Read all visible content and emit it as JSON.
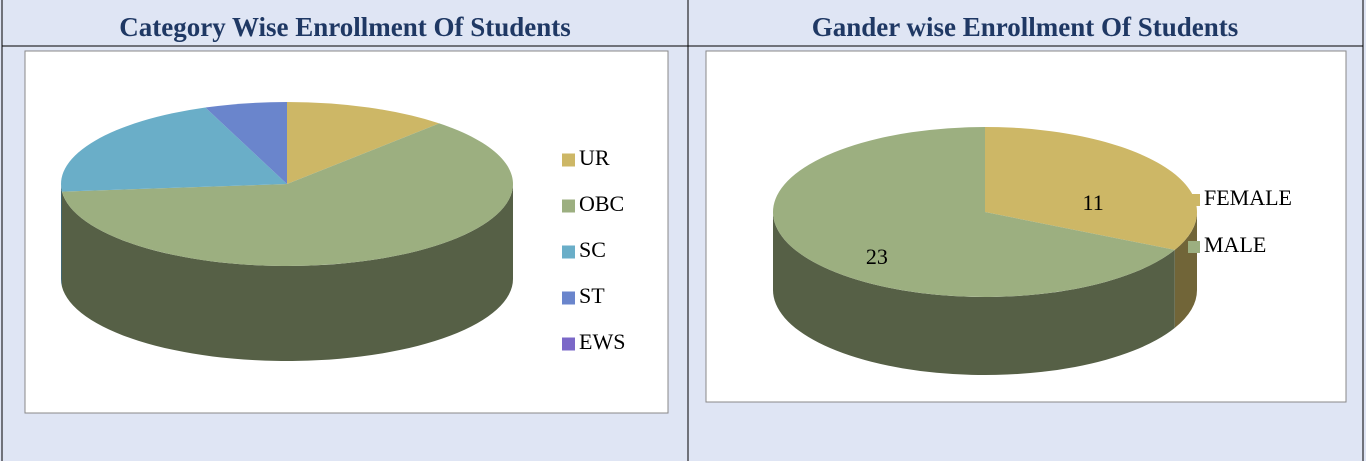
{
  "chart_data": [
    {
      "type": "pie",
      "title": "Category Wise Enrollment Of Students",
      "categories": [
        "UR",
        "OBC",
        "SC",
        "ST",
        "EWS"
      ],
      "values": [
        4,
        21,
        7,
        2,
        0
      ],
      "colors": [
        "#cdb766",
        "#9caf80",
        "#6aaec8",
        "#6a85cc",
        "#7b68c8"
      ],
      "legend": "right"
    },
    {
      "type": "pie",
      "title": "Gander wise Enrollment Of Students",
      "categories": [
        "FEMALE",
        "MALE"
      ],
      "values": [
        11,
        23
      ],
      "colors": [
        "#cdb766",
        "#9caf80"
      ],
      "legend": "right",
      "data_labels": true
    }
  ]
}
